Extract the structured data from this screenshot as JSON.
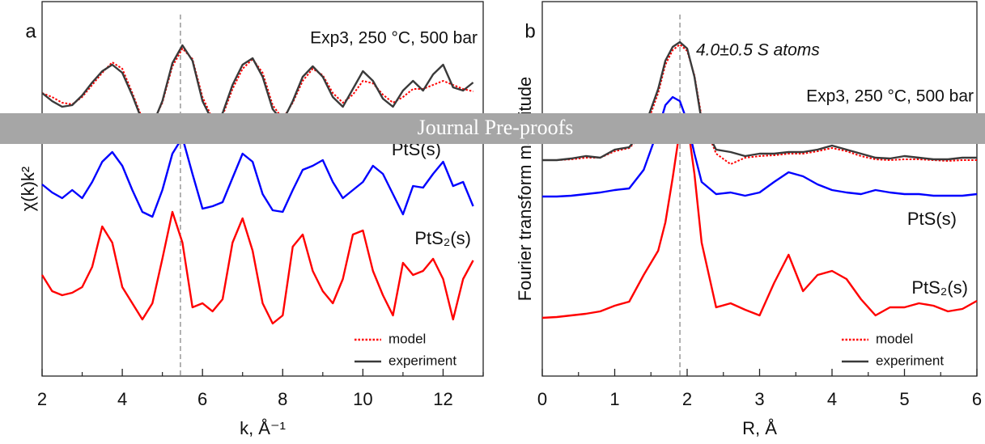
{
  "chart_data": [
    {
      "type": "line",
      "panel": "a",
      "xlabel": "k, Å⁻¹",
      "ylabel": "χ(k)k²",
      "x": [
        2.0,
        2.25,
        2.5,
        2.75,
        3.0,
        3.25,
        3.5,
        3.75,
        4.0,
        4.25,
        4.5,
        4.75,
        5.0,
        5.25,
        5.5,
        5.75,
        6.0,
        6.25,
        6.5,
        6.75,
        7.0,
        7.25,
        7.5,
        7.75,
        8.0,
        8.25,
        8.5,
        8.75,
        9.0,
        9.25,
        9.5,
        9.75,
        10.0,
        10.25,
        10.5,
        10.75,
        11.0,
        11.25,
        11.5,
        11.75,
        12.0,
        12.25,
        12.5,
        12.75
      ],
      "xlim": [
        2,
        13
      ],
      "xticks": [
        2,
        4,
        6,
        8,
        10,
        12
      ],
      "xminorticks": [
        3,
        5,
        7,
        9,
        11,
        13
      ],
      "ylim": [
        0,
        463
      ],
      "vline": 5.45,
      "annotations": [
        "Exp3, 250 °C, 500 bar"
      ],
      "series": [
        {
          "name": "experiment",
          "color": "#3a3a3a",
          "dash": "solid",
          "legend": true,
          "values": [
            350,
            340,
            333,
            335,
            347,
            363,
            377,
            385,
            375,
            347,
            315,
            310,
            340,
            387,
            409,
            390,
            340,
            315,
            325,
            360,
            385,
            393,
            370,
            330,
            315,
            340,
            370,
            383,
            370,
            345,
            333,
            355,
            377,
            365,
            343,
            333,
            353,
            365,
            353,
            373,
            385,
            357,
            353,
            363
          ]
        },
        {
          "name": "model",
          "color": "#ff0000",
          "dash": "dotted",
          "legend": true,
          "values": [
            350,
            345,
            338,
            336,
            345,
            360,
            375,
            388,
            380,
            350,
            318,
            312,
            338,
            383,
            405,
            392,
            345,
            318,
            322,
            355,
            380,
            392,
            375,
            335,
            318,
            338,
            365,
            380,
            372,
            350,
            338,
            348,
            365,
            362,
            348,
            338,
            345,
            355,
            355,
            360,
            365,
            360,
            355,
            352
          ]
        },
        {
          "name": "PtS(s)",
          "color": "#0000ff",
          "dash": "solid",
          "legend": false,
          "values": [
            237,
            227,
            220,
            230,
            220,
            240,
            265,
            277,
            260,
            230,
            203,
            197,
            230,
            275,
            295,
            250,
            207,
            210,
            215,
            245,
            275,
            265,
            225,
            205,
            203,
            230,
            255,
            260,
            267,
            240,
            220,
            230,
            240,
            260,
            250,
            225,
            200,
            235,
            233,
            250,
            265,
            235,
            240,
            210
          ]
        },
        {
          "name": "PtS₂(s)",
          "color": "#ff0000",
          "dash": "solid",
          "legend": false,
          "values": [
            125,
            105,
            100,
            103,
            110,
            135,
            185,
            165,
            110,
            90,
            70,
            90,
            145,
            203,
            165,
            85,
            90,
            80,
            95,
            165,
            195,
            155,
            90,
            65,
            75,
            160,
            175,
            130,
            105,
            90,
            120,
            175,
            180,
            130,
            100,
            75,
            140,
            125,
            130,
            145,
            120,
            70,
            120,
            143
          ]
        }
      ]
    },
    {
      "type": "line",
      "panel": "b",
      "xlabel": "R, Å",
      "ylabel": "Fourier transform magnitude",
      "x": [
        0,
        0.2,
        0.4,
        0.6,
        0.8,
        1.0,
        1.2,
        1.4,
        1.6,
        1.7,
        1.8,
        1.9,
        2.0,
        2.1,
        2.2,
        2.4,
        2.6,
        2.8,
        3.0,
        3.2,
        3.4,
        3.6,
        3.8,
        4.0,
        4.2,
        4.4,
        4.6,
        4.8,
        5.0,
        5.2,
        5.4,
        5.6,
        5.8,
        6.0
      ],
      "xlim": [
        0,
        6
      ],
      "xticks": [
        0,
        1,
        2,
        3,
        4,
        5,
        6
      ],
      "xminorticks": [
        0.5,
        1.5,
        2.5,
        3.5,
        4.5,
        5.5
      ],
      "ylim": [
        0,
        463
      ],
      "vline": 1.9,
      "annotations": [
        "4.0±0.5 S atoms",
        "Exp3, 250 °C, 500 bar"
      ],
      "series": [
        {
          "name": "experiment",
          "color": "#3a3a3a",
          "dash": "solid",
          "legend": true,
          "values": [
            267,
            267,
            269,
            272,
            270,
            280,
            283,
            305,
            355,
            390,
            407,
            413,
            405,
            370,
            315,
            280,
            277,
            272,
            275,
            275,
            277,
            277,
            280,
            285,
            280,
            275,
            270,
            269,
            272,
            270,
            268,
            268,
            270,
            270
          ]
        },
        {
          "name": "model",
          "color": "#ff0000",
          "dash": "dotted",
          "legend": true,
          "values": [
            267,
            267,
            268,
            270,
            270,
            278,
            282,
            300,
            350,
            385,
            403,
            410,
            402,
            372,
            320,
            275,
            262,
            270,
            272,
            273,
            275,
            275,
            278,
            282,
            278,
            272,
            268,
            267,
            268,
            268,
            267,
            266,
            267,
            267
          ]
        },
        {
          "name": "PtS(s)",
          "color": "#0000ff",
          "dash": "solid",
          "legend": false,
          "values": [
            222,
            222,
            223,
            225,
            227,
            230,
            232,
            255,
            305,
            335,
            345,
            340,
            315,
            275,
            240,
            225,
            227,
            223,
            227,
            240,
            252,
            247,
            237,
            230,
            227,
            225,
            230,
            227,
            225,
            225,
            223,
            223,
            223,
            225
          ]
        },
        {
          "name": "PtS₂(s)",
          "color": "#ff0000",
          "dash": "solid",
          "legend": false,
          "values": [
            72,
            73,
            75,
            77,
            80,
            87,
            92,
            125,
            155,
            190,
            245,
            305,
            315,
            250,
            165,
            85,
            90,
            82,
            75,
            115,
            150,
            105,
            125,
            130,
            120,
            95,
            75,
            85,
            85,
            90,
            87,
            80,
            83,
            93
          ]
        }
      ]
    }
  ],
  "watermark": "Journal Pre-proofs"
}
